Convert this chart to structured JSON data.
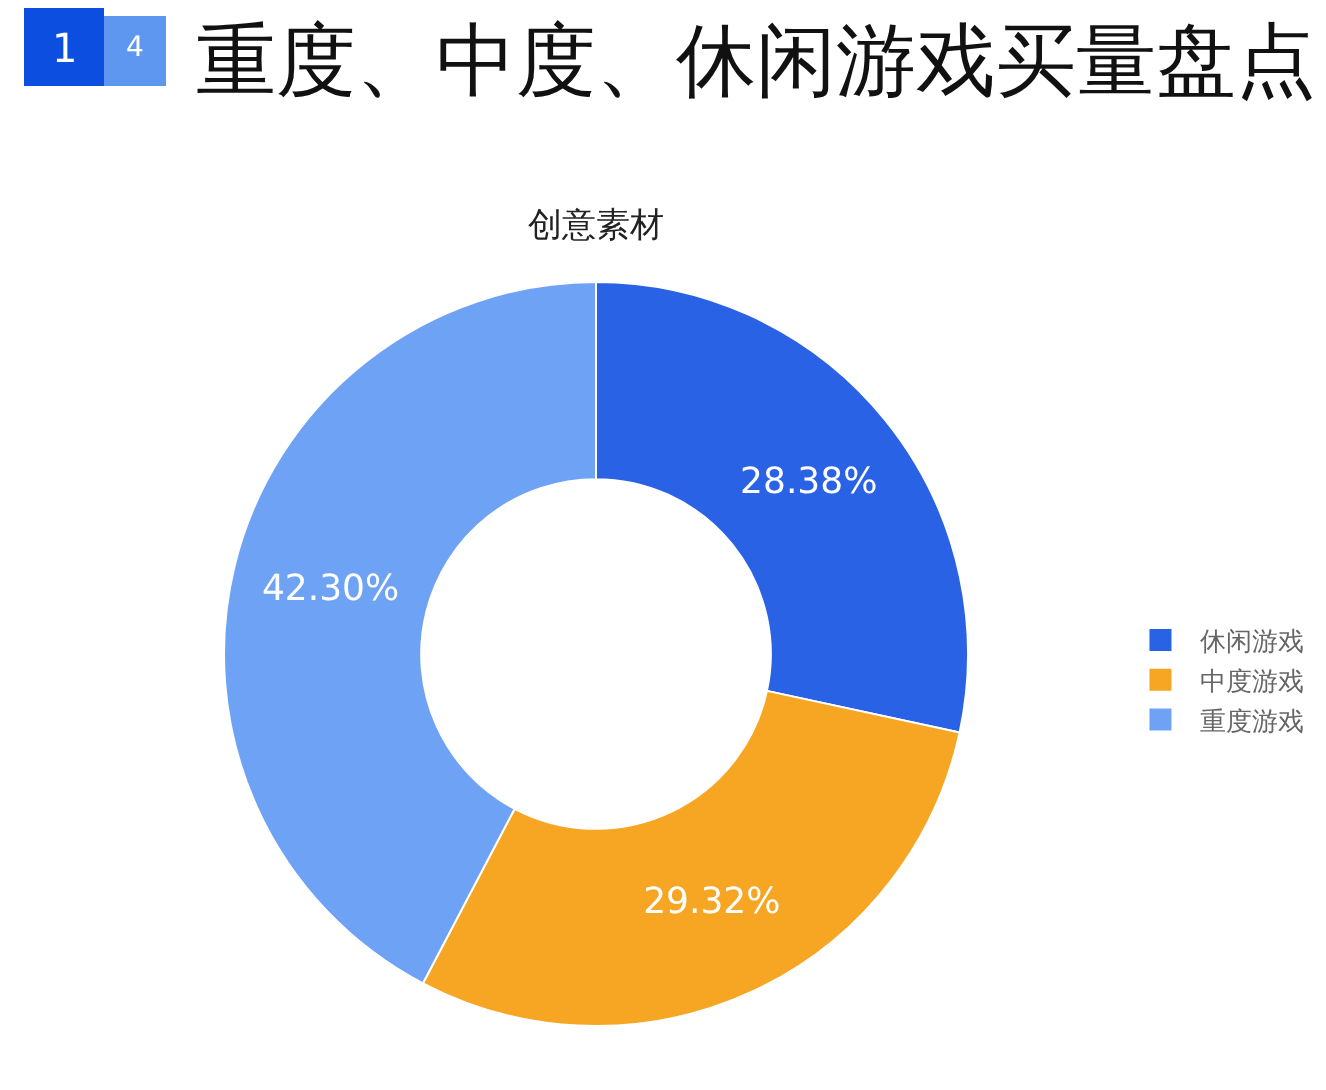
{
  "chart_data": {
    "type": "donut",
    "title": "重度、中度、休闲游戏买量盘点",
    "subtitle": "创意素材",
    "annotations": [
      "1",
      "4"
    ],
    "categories": [
      "休闲游戏",
      "中度游戏",
      "重度游戏"
    ],
    "values": [
      28.38,
      29.32,
      42.3
    ],
    "colors": [
      "#2a62e6",
      "#f6a623",
      "#6ea2f5"
    ],
    "value_labels": [
      "28.38%",
      "29.32%",
      "42.30%"
    ],
    "legend": "right"
  }
}
